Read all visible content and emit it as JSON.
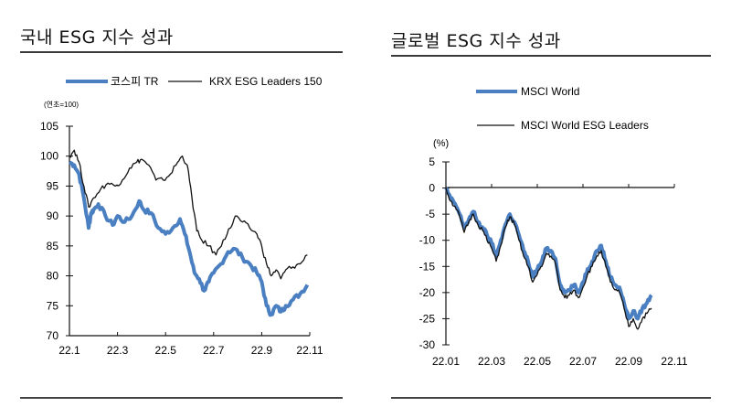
{
  "left": {
    "title": "국내 ESG 지수 성과",
    "legend": [
      "코스피 TR",
      "KRX ESG Leaders 150"
    ],
    "unit": "(연초=100)"
  },
  "right": {
    "title": "글로벌 ESG 지수 성과",
    "legend": [
      "MSCI World",
      "MSCI World ESG Leaders"
    ],
    "unit": "(%)"
  },
  "colors": {
    "blue": "#4a7fc1",
    "black": "#111111",
    "rule": "#3a3a3a"
  },
  "chart_data": [
    {
      "type": "line",
      "title": "국내 ESG 지수 성과",
      "ylabel": "(연초=100)",
      "xlabel": "",
      "x_ticks": [
        "22.1",
        "22.3",
        "22.5",
        "22.7",
        "22.9",
        "22.11"
      ],
      "y_ticks": [
        105,
        100,
        95,
        90,
        85,
        80,
        75,
        70
      ],
      "ylim": [
        70,
        105
      ],
      "xlim_months": [
        0,
        10
      ],
      "grid": false,
      "legend_position": "top",
      "series": [
        {
          "name": "코스피 TR",
          "color": "#4a7fc1",
          "width": 4,
          "x": [
            0,
            0.2,
            0.4,
            0.6,
            0.8,
            0.9,
            1.0,
            1.2,
            1.5,
            1.8,
            2.0,
            2.3,
            2.6,
            2.9,
            3.1,
            3.4,
            3.7,
            4.0,
            4.3,
            4.6,
            4.8,
            5.0,
            5.2,
            5.4,
            5.6,
            5.8,
            6.0,
            6.3,
            6.6,
            6.9,
            7.2,
            7.5,
            7.8,
            8.0,
            8.2,
            8.4,
            8.6,
            8.8,
            9.0,
            9.3,
            9.6,
            9.9
          ],
          "values": [
            99,
            98.5,
            97,
            93,
            88,
            90.5,
            91,
            92,
            90,
            88.5,
            90,
            89,
            90,
            92.5,
            91,
            90.5,
            88,
            87,
            88,
            89.5,
            87,
            84,
            80.5,
            79.5,
            77.5,
            79,
            80.5,
            82,
            84,
            84.5,
            83,
            82,
            80.5,
            79,
            75,
            73.5,
            75,
            74,
            75,
            76,
            77,
            78.5
          ]
        },
        {
          "name": "KRX ESG Leaders 150",
          "color": "#111111",
          "width": 1.3,
          "x": [
            0,
            0.2,
            0.4,
            0.6,
            0.8,
            1.0,
            1.3,
            1.6,
            1.9,
            2.2,
            2.5,
            2.8,
            3.0,
            3.3,
            3.6,
            3.9,
            4.2,
            4.5,
            4.7,
            4.9,
            5.1,
            5.3,
            5.5,
            5.8,
            6.1,
            6.4,
            6.7,
            6.9,
            7.2,
            7.5,
            7.8,
            8.0,
            8.2,
            8.4,
            8.6,
            8.8,
            9.0,
            9.3,
            9.6,
            9.9
          ],
          "values": [
            100,
            101,
            99,
            95,
            91.5,
            93,
            94.5,
            95.5,
            95,
            96,
            98,
            99,
            99.5,
            98.5,
            96,
            96,
            97,
            99,
            100,
            98.5,
            93,
            87.5,
            86,
            85,
            83.5,
            86,
            88,
            90,
            89,
            88,
            87,
            85,
            82,
            80,
            81,
            79.5,
            81,
            81.5,
            82,
            83.5
          ]
        }
      ]
    },
    {
      "type": "line",
      "title": "글로벌 ESG 지수 성과",
      "ylabel": "(%)",
      "xlabel": "",
      "x_ticks": [
        "22.01",
        "22.03",
        "22.05",
        "22.07",
        "22.09",
        "22.11"
      ],
      "y_ticks": [
        5,
        0,
        -5,
        -10,
        -15,
        -20,
        -25,
        -30
      ],
      "ylim": [
        -30,
        5
      ],
      "xlim_months": [
        0,
        10
      ],
      "grid": false,
      "legend_position": "top",
      "series": [
        {
          "name": "MSCI World",
          "color": "#4a7fc1",
          "width": 4,
          "x": [
            0,
            0.2,
            0.4,
            0.6,
            0.8,
            1.0,
            1.2,
            1.4,
            1.6,
            1.8,
            2.0,
            2.2,
            2.4,
            2.6,
            2.8,
            3.0,
            3.2,
            3.4,
            3.6,
            3.8,
            4.0,
            4.2,
            4.4,
            4.6,
            4.8,
            5.0,
            5.2,
            5.4,
            5.6,
            5.8,
            6.0,
            6.2,
            6.4,
            6.6,
            6.8,
            7.0,
            7.2,
            7.4,
            7.6,
            7.8,
            8.0,
            8.2,
            8.4,
            8.6,
            8.8,
            9.0
          ],
          "values": [
            0,
            -2,
            -3,
            -5,
            -7.5,
            -6,
            -4.5,
            -6.5,
            -7.5,
            -9,
            -10.5,
            -13,
            -10,
            -7,
            -5,
            -6.5,
            -9,
            -12,
            -14,
            -17,
            -15.5,
            -14,
            -11.5,
            -12,
            -13.5,
            -18.5,
            -20,
            -19.5,
            -18.5,
            -20,
            -18,
            -15.5,
            -14,
            -12,
            -11,
            -14,
            -17,
            -18.5,
            -19,
            -22,
            -25,
            -23.5,
            -25,
            -23,
            -22,
            -20.5
          ]
        },
        {
          "name": "MSCI World ESG Leaders",
          "color": "#111111",
          "width": 1.3,
          "x": [
            0,
            0.2,
            0.4,
            0.6,
            0.8,
            1.0,
            1.2,
            1.4,
            1.6,
            1.8,
            2.0,
            2.2,
            2.4,
            2.6,
            2.8,
            3.0,
            3.2,
            3.4,
            3.6,
            3.8,
            4.0,
            4.2,
            4.4,
            4.6,
            4.8,
            5.0,
            5.2,
            5.4,
            5.6,
            5.8,
            6.0,
            6.2,
            6.4,
            6.6,
            6.8,
            7.0,
            7.2,
            7.4,
            7.6,
            7.8,
            8.0,
            8.2,
            8.4,
            8.6,
            8.8,
            9.0
          ],
          "values": [
            0,
            -2.5,
            -3.5,
            -5.5,
            -8.5,
            -6.5,
            -5,
            -7,
            -8,
            -10,
            -11.5,
            -14,
            -11,
            -7.5,
            -5.5,
            -7,
            -10,
            -13,
            -15,
            -18,
            -16.5,
            -15,
            -12.5,
            -13,
            -14.5,
            -19.5,
            -21,
            -20.5,
            -19.5,
            -21,
            -19,
            -16.5,
            -15,
            -13,
            -12,
            -15,
            -18,
            -19.5,
            -20,
            -23,
            -26.5,
            -25,
            -27,
            -25,
            -24,
            -23
          ]
        }
      ]
    }
  ]
}
